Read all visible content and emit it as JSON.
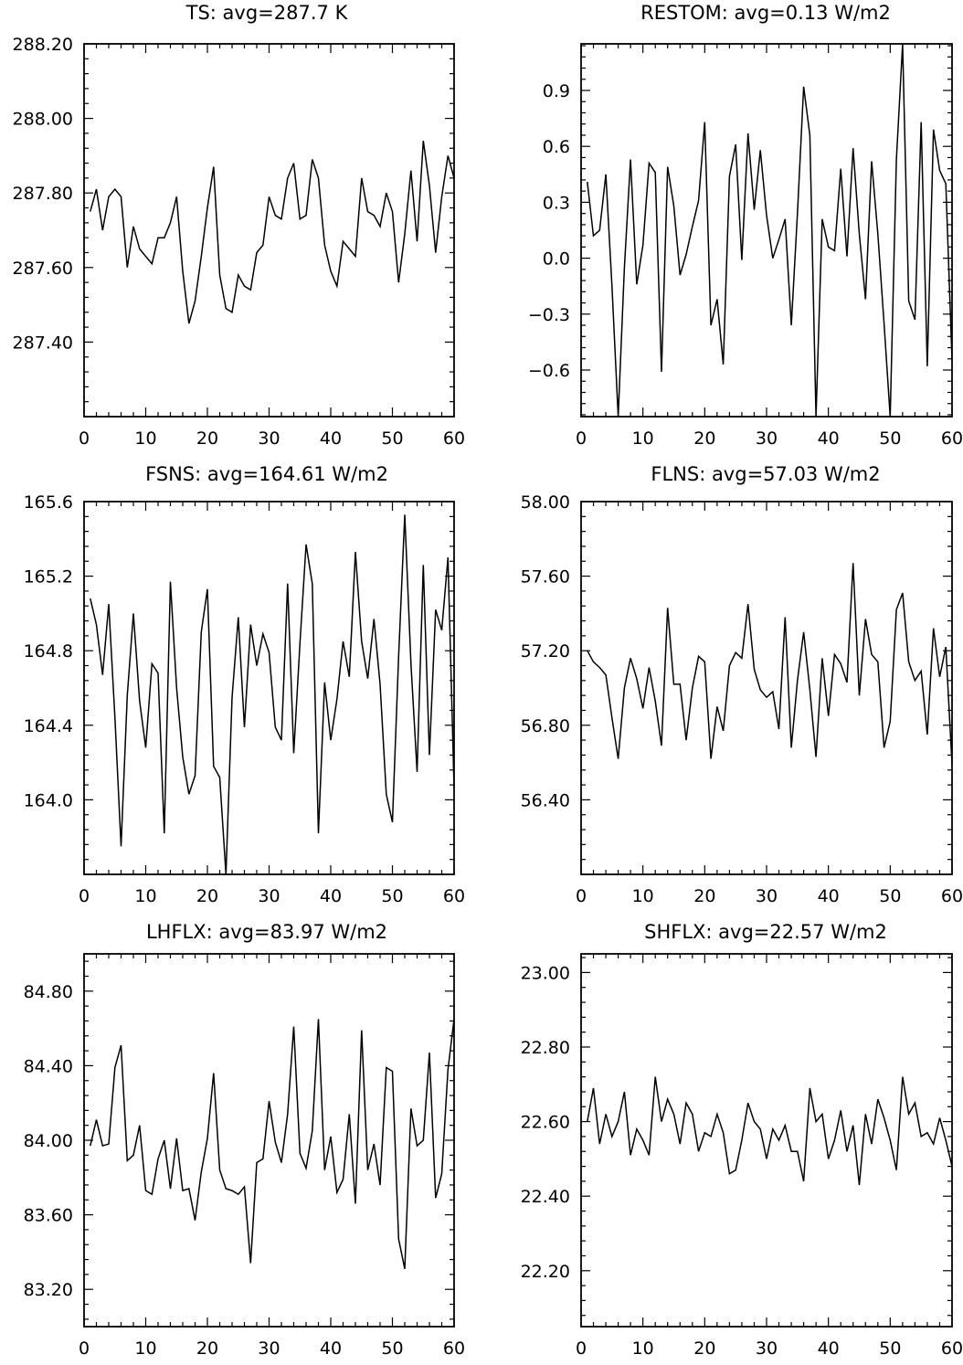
{
  "chart_data": [
    {
      "type": "line",
      "title": "TS: avg=287.7 K",
      "xlabel": "",
      "ylabel": "",
      "xlim": [
        0,
        60
      ],
      "ylim": [
        287.2,
        288.2
      ],
      "xticks": [
        0,
        10,
        20,
        30,
        40,
        50,
        60
      ],
      "xtick_labels": [
        "0",
        "10",
        "20",
        "30",
        "40",
        "50",
        "60"
      ],
      "yticks": [
        287.4,
        287.6,
        287.8,
        288.0,
        288.2
      ],
      "ytick_labels": [
        "287.40",
        "287.60",
        "287.80",
        "288.00",
        "288.20"
      ],
      "series": [
        {
          "x": [
            1,
            2,
            3,
            4,
            5,
            6,
            7,
            8,
            9,
            10,
            11,
            12,
            13,
            14,
            15,
            16,
            17,
            18,
            19,
            20,
            21,
            22,
            23,
            24,
            25,
            26,
            27,
            28,
            29,
            30,
            31,
            32,
            33,
            34,
            35,
            36,
            37,
            38,
            39,
            40,
            41,
            42,
            43,
            44,
            45,
            46,
            47,
            48,
            49,
            50,
            51,
            52,
            53,
            54,
            55,
            56,
            57,
            58,
            59,
            60
          ],
          "values": [
            287.75,
            287.81,
            287.7,
            287.79,
            287.81,
            287.79,
            287.6,
            287.71,
            287.65,
            287.63,
            287.61,
            287.68,
            287.68,
            287.72,
            287.79,
            287.59,
            287.45,
            287.51,
            287.63,
            287.76,
            287.87,
            287.58,
            287.49,
            287.48,
            287.58,
            287.55,
            287.54,
            287.64,
            287.66,
            287.79,
            287.74,
            287.73,
            287.84,
            287.88,
            287.73,
            287.74,
            287.89,
            287.84,
            287.66,
            287.59,
            287.55,
            287.67,
            287.65,
            287.63,
            287.84,
            287.75,
            287.74,
            287.71,
            287.8,
            287.75,
            287.56,
            287.69,
            287.86,
            287.67,
            287.94,
            287.82,
            287.64,
            287.79,
            287.9,
            287.84
          ]
        }
      ]
    },
    {
      "type": "line",
      "title": "RESTOM: avg=0.13 W/m2",
      "xlabel": "",
      "ylabel": "",
      "xlim": [
        0,
        60
      ],
      "ylim": [
        -0.85,
        1.15
      ],
      "xticks": [
        0,
        10,
        20,
        30,
        40,
        50,
        60
      ],
      "xtick_labels": [
        "0",
        "10",
        "20",
        "30",
        "40",
        "50",
        "60"
      ],
      "yticks": [
        -0.6,
        -0.3,
        0.0,
        0.3,
        0.6,
        0.9
      ],
      "ytick_labels": [
        "−0.6",
        "−0.3",
        "0.0",
        "0.3",
        "0.6",
        "0.9"
      ],
      "series": [
        {
          "x": [
            1,
            2,
            3,
            4,
            5,
            6,
            7,
            8,
            9,
            10,
            11,
            12,
            13,
            14,
            15,
            16,
            17,
            18,
            19,
            20,
            21,
            22,
            23,
            24,
            25,
            26,
            27,
            28,
            29,
            30,
            31,
            32,
            33,
            34,
            35,
            36,
            37,
            38,
            39,
            40,
            41,
            42,
            43,
            44,
            45,
            46,
            47,
            48,
            49,
            50,
            51,
            52,
            53,
            54,
            55,
            56,
            57,
            58,
            59,
            60
          ],
          "values": [
            0.41,
            0.12,
            0.15,
            0.45,
            -0.15,
            -0.85,
            -0.05,
            0.53,
            -0.14,
            0.07,
            0.51,
            0.46,
            -0.61,
            0.49,
            0.28,
            -0.09,
            0.02,
            0.17,
            0.31,
            0.73,
            -0.36,
            -0.22,
            -0.57,
            0.44,
            0.61,
            -0.01,
            0.67,
            0.26,
            0.58,
            0.23,
            0.0,
            0.1,
            0.21,
            -0.36,
            0.24,
            0.92,
            0.66,
            -0.85,
            0.21,
            0.06,
            0.04,
            0.48,
            0.01,
            0.59,
            0.13,
            -0.22,
            0.52,
            0.13,
            -0.35,
            -0.85,
            0.53,
            1.15,
            -0.23,
            -0.33,
            0.73,
            -0.58,
            0.69,
            0.47,
            0.4,
            -0.55
          ]
        }
      ]
    },
    {
      "type": "line",
      "title": "FSNS: avg=164.61 W/m2",
      "xlabel": "",
      "ylabel": "",
      "xlim": [
        0,
        60
      ],
      "ylim": [
        163.6,
        165.6
      ],
      "xticks": [
        0,
        10,
        20,
        30,
        40,
        50,
        60
      ],
      "xtick_labels": [
        "0",
        "10",
        "20",
        "30",
        "40",
        "50",
        "60"
      ],
      "yticks": [
        164.0,
        164.4,
        164.8,
        165.2,
        165.6
      ],
      "ytick_labels": [
        "164.0",
        "164.4",
        "164.8",
        "165.2",
        "165.6"
      ],
      "series": [
        {
          "x": [
            1,
            2,
            3,
            4,
            5,
            6,
            7,
            8,
            9,
            10,
            11,
            12,
            13,
            14,
            15,
            16,
            17,
            18,
            19,
            20,
            21,
            22,
            23,
            24,
            25,
            26,
            27,
            28,
            29,
            30,
            31,
            32,
            33,
            34,
            35,
            36,
            37,
            38,
            39,
            40,
            41,
            42,
            43,
            44,
            45,
            46,
            47,
            48,
            49,
            50,
            51,
            52,
            53,
            54,
            55,
            56,
            57,
            58,
            59,
            60
          ],
          "values": [
            165.08,
            164.94,
            164.67,
            165.05,
            164.44,
            163.75,
            164.56,
            165.0,
            164.53,
            164.28,
            164.73,
            164.68,
            163.82,
            165.17,
            164.6,
            164.23,
            164.03,
            164.13,
            164.9,
            165.13,
            164.18,
            164.12,
            163.6,
            164.55,
            164.98,
            164.39,
            164.94,
            164.72,
            164.89,
            164.79,
            164.39,
            164.32,
            165.16,
            164.25,
            164.84,
            165.37,
            165.16,
            163.82,
            164.63,
            164.32,
            164.54,
            164.85,
            164.66,
            165.33,
            164.85,
            164.65,
            164.97,
            164.62,
            164.03,
            163.88,
            164.77,
            165.53,
            164.73,
            164.15,
            165.26,
            164.24,
            165.02,
            164.91,
            165.3,
            164.06
          ]
        }
      ]
    },
    {
      "type": "line",
      "title": "FLNS: avg=57.03 W/m2",
      "xlabel": "",
      "ylabel": "",
      "xlim": [
        0,
        60
      ],
      "ylim": [
        56.0,
        58.0
      ],
      "xticks": [
        0,
        10,
        20,
        30,
        40,
        50,
        60
      ],
      "xtick_labels": [
        "0",
        "10",
        "20",
        "30",
        "40",
        "50",
        "60"
      ],
      "yticks": [
        56.4,
        56.8,
        57.2,
        57.6,
        58.0
      ],
      "ytick_labels": [
        "56.40",
        "56.80",
        "57.20",
        "57.60",
        "58.00"
      ],
      "series": [
        {
          "x": [
            1,
            2,
            3,
            4,
            5,
            6,
            7,
            8,
            9,
            10,
            11,
            12,
            13,
            14,
            15,
            16,
            17,
            18,
            19,
            20,
            21,
            22,
            23,
            24,
            25,
            26,
            27,
            28,
            29,
            30,
            31,
            32,
            33,
            34,
            35,
            36,
            37,
            38,
            39,
            40,
            41,
            42,
            43,
            44,
            45,
            46,
            47,
            48,
            49,
            50,
            51,
            52,
            53,
            54,
            55,
            56,
            57,
            58,
            59,
            60
          ],
          "values": [
            57.2,
            57.14,
            57.11,
            57.07,
            56.84,
            56.62,
            57.0,
            57.16,
            57.05,
            56.89,
            57.11,
            56.93,
            56.69,
            57.43,
            57.02,
            57.02,
            56.72,
            57.0,
            57.17,
            57.14,
            56.62,
            56.9,
            56.77,
            57.12,
            57.19,
            57.16,
            57.45,
            57.1,
            56.99,
            56.95,
            56.98,
            56.78,
            57.38,
            56.68,
            57.04,
            57.3,
            56.99,
            56.63,
            57.16,
            56.85,
            57.18,
            57.13,
            57.03,
            57.67,
            56.96,
            57.37,
            57.18,
            57.14,
            56.68,
            56.82,
            57.42,
            57.51,
            57.14,
            57.04,
            57.09,
            56.75,
            57.32,
            57.06,
            57.22,
            56.59
          ]
        }
      ]
    },
    {
      "type": "line",
      "title": "LHFLX: avg=83.97 W/m2",
      "xlabel": "",
      "ylabel": "",
      "xlim": [
        0,
        60
      ],
      "ylim": [
        83.0,
        85.0
      ],
      "xticks": [
        0,
        10,
        20,
        30,
        40,
        50,
        60
      ],
      "xtick_labels": [
        "0",
        "10",
        "20",
        "30",
        "40",
        "50",
        "60"
      ],
      "yticks": [
        83.2,
        83.6,
        84.0,
        84.4,
        84.8
      ],
      "ytick_labels": [
        "83.20",
        "83.60",
        "84.00",
        "84.40",
        "84.80"
      ],
      "series": [
        {
          "x": [
            1,
            2,
            3,
            4,
            5,
            6,
            7,
            8,
            9,
            10,
            11,
            12,
            13,
            14,
            15,
            16,
            17,
            18,
            19,
            20,
            21,
            22,
            23,
            24,
            25,
            26,
            27,
            28,
            29,
            30,
            31,
            32,
            33,
            34,
            35,
            36,
            37,
            38,
            39,
            40,
            41,
            42,
            43,
            44,
            45,
            46,
            47,
            48,
            49,
            50,
            51,
            52,
            53,
            54,
            55,
            56,
            57,
            58,
            59,
            60
          ],
          "values": [
            83.97,
            84.11,
            83.97,
            83.98,
            84.39,
            84.51,
            83.89,
            83.92,
            84.08,
            83.73,
            83.71,
            83.9,
            84.0,
            83.74,
            84.01,
            83.73,
            83.74,
            83.57,
            83.83,
            84.01,
            84.36,
            83.84,
            83.74,
            83.73,
            83.71,
            83.75,
            83.34,
            83.88,
            83.9,
            84.21,
            83.99,
            83.88,
            84.14,
            84.61,
            83.93,
            83.85,
            84.05,
            84.65,
            83.84,
            84.02,
            83.72,
            83.79,
            84.14,
            83.66,
            84.59,
            83.84,
            83.98,
            83.76,
            84.39,
            84.37,
            83.47,
            83.31,
            84.17,
            83.97,
            84.0,
            84.47,
            83.69,
            83.82,
            84.38,
            84.65
          ]
        }
      ]
    },
    {
      "type": "line",
      "title": "SHFLX: avg=22.57 W/m2",
      "xlabel": "",
      "ylabel": "",
      "xlim": [
        0,
        60
      ],
      "ylim": [
        22.05,
        23.05
      ],
      "xticks": [
        0,
        10,
        20,
        30,
        40,
        50,
        60
      ],
      "xtick_labels": [
        "0",
        "10",
        "20",
        "30",
        "40",
        "50",
        "60"
      ],
      "yticks": [
        22.2,
        22.4,
        22.6,
        22.8,
        23.0
      ],
      "ytick_labels": [
        "22.20",
        "22.40",
        "22.60",
        "22.80",
        "23.00"
      ],
      "series": [
        {
          "x": [
            1,
            2,
            3,
            4,
            5,
            6,
            7,
            8,
            9,
            10,
            11,
            12,
            13,
            14,
            15,
            16,
            17,
            18,
            19,
            20,
            21,
            22,
            23,
            24,
            25,
            26,
            27,
            28,
            29,
            30,
            31,
            32,
            33,
            34,
            35,
            36,
            37,
            38,
            39,
            40,
            41,
            42,
            43,
            44,
            45,
            46,
            47,
            48,
            49,
            50,
            51,
            52,
            53,
            54,
            55,
            56,
            57,
            58,
            59,
            60
          ],
          "values": [
            22.6,
            22.69,
            22.54,
            22.62,
            22.56,
            22.6,
            22.68,
            22.51,
            22.58,
            22.55,
            22.51,
            22.72,
            22.6,
            22.66,
            22.62,
            22.54,
            22.65,
            22.62,
            22.52,
            22.57,
            22.56,
            22.62,
            22.57,
            22.46,
            22.47,
            22.55,
            22.65,
            22.6,
            22.58,
            22.5,
            22.58,
            22.55,
            22.59,
            22.52,
            22.52,
            22.44,
            22.69,
            22.6,
            22.62,
            22.5,
            22.55,
            22.63,
            22.52,
            22.59,
            22.43,
            22.62,
            22.54,
            22.66,
            22.61,
            22.55,
            22.47,
            22.72,
            22.62,
            22.65,
            22.56,
            22.57,
            22.54,
            22.61,
            22.55,
            22.48
          ]
        }
      ]
    }
  ]
}
